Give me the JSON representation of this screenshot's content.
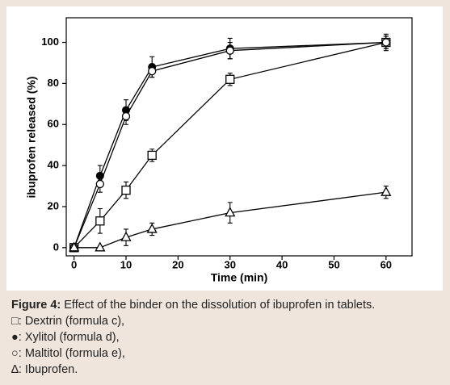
{
  "chart_data": {
    "type": "line",
    "x_label": "Time (min)",
    "y_label": "ibuprofen released (%)",
    "xlim": [
      -1.5,
      65
    ],
    "ylim": [
      -4,
      112
    ],
    "xticks": [
      0,
      10,
      20,
      30,
      40,
      50,
      60
    ],
    "yticks": [
      0,
      20,
      40,
      60,
      80,
      100
    ],
    "series": [
      {
        "marker": "square",
        "color": "#000",
        "x": [
          0,
          5,
          10,
          15,
          30,
          60
        ],
        "values": [
          0,
          13,
          28,
          45,
          82,
          100
        ],
        "errors": [
          0,
          6,
          4,
          3,
          3,
          4
        ]
      },
      {
        "marker": "filled-circle",
        "color": "#000",
        "x": [
          0,
          5,
          10,
          15,
          30,
          60
        ],
        "values": [
          0,
          35,
          67,
          88,
          97,
          100
        ],
        "errors": [
          0,
          5,
          5,
          5,
          5,
          3
        ]
      },
      {
        "marker": "open-circle",
        "color": "#000",
        "x": [
          0,
          5,
          10,
          15,
          30,
          60
        ],
        "values": [
          0,
          31,
          64,
          86,
          96,
          100
        ],
        "errors": [
          0,
          4,
          4,
          3,
          4,
          3
        ]
      },
      {
        "marker": "triangle",
        "color": "#000",
        "x": [
          0,
          5,
          10,
          15,
          30,
          60
        ],
        "values": [
          0,
          0,
          5,
          9,
          17,
          27
        ],
        "errors": [
          0,
          0,
          4,
          3,
          5,
          3
        ]
      }
    ]
  },
  "caption": {
    "label": "Figure 4:",
    "text": "Effect of the binder on the dissolution of ibuprofen in tablets.",
    "items": [
      "□: Dextrin (formula c),",
      "●: Xylitol (formula d),",
      "○: Maltitol (formula e),",
      "∆: Ibuprofen."
    ]
  }
}
